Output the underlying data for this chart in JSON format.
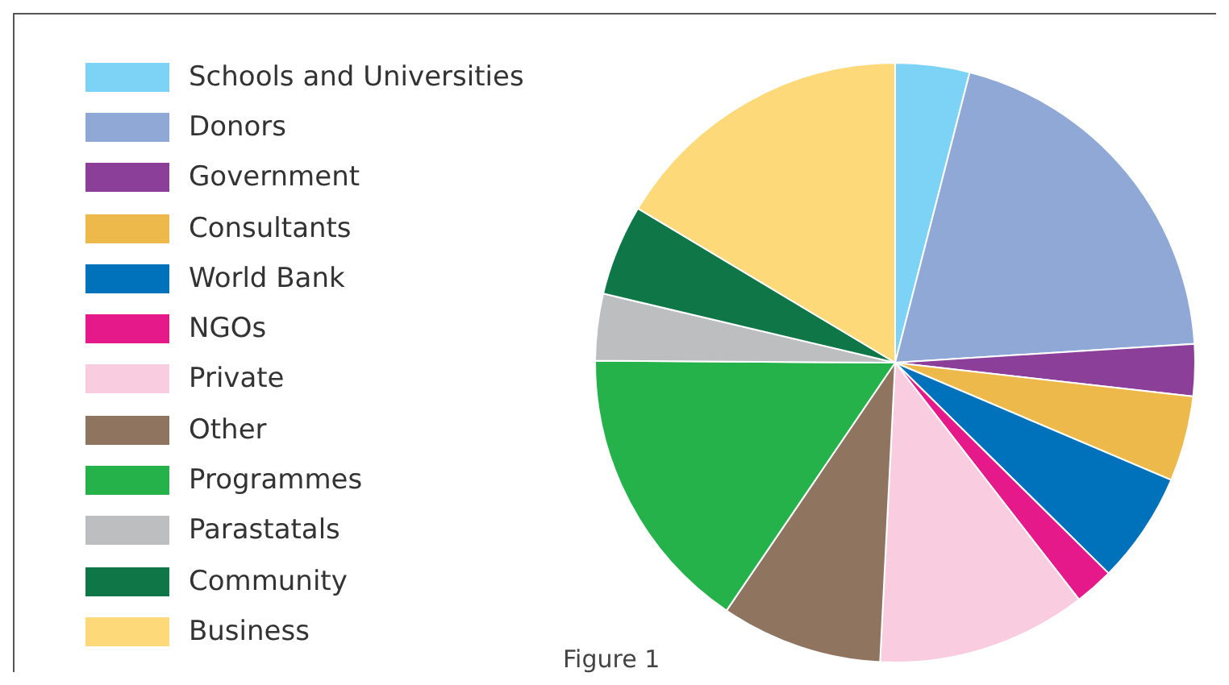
{
  "chart_data": {
    "type": "pie",
    "categories": [
      "Schools and Universities",
      "Donors",
      "Government",
      "Consultants",
      "World Bank",
      "NGOs",
      "Private",
      "Other",
      "Programmes",
      "Parastatals",
      "Community",
      "Business"
    ],
    "values": [
      4,
      20,
      2.8,
      4.6,
      6,
      2.1,
      11.3,
      8.7,
      15.6,
      3.6,
      4.9,
      16.4
    ],
    "colors": [
      "#7dd3f5",
      "#8fa8d6",
      "#8b3f98",
      "#ecb94a",
      "#0071bb",
      "#e6198b",
      "#f9cce0",
      "#8f7460",
      "#26b24b",
      "#bcbec0",
      "#0f7647",
      "#fdd97a"
    ],
    "legend": "left",
    "annotations": [
      "Figure 1"
    ]
  }
}
